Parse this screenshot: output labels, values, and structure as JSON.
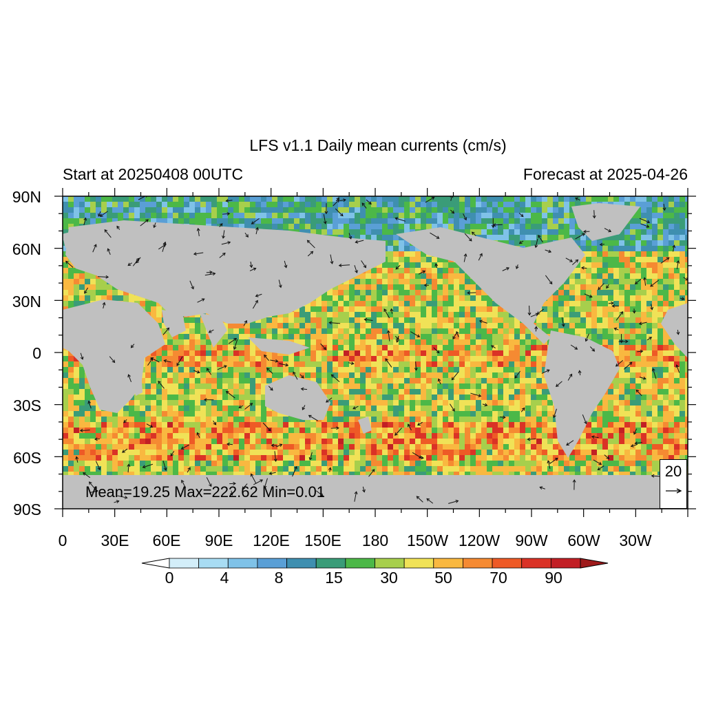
{
  "title": "LFS v1.1 Daily mean currents (cm/s)",
  "left_subtitle": "Start at 20250408 00UTC",
  "right_subtitle": "Forecast at 2025-04-26",
  "lat_labels": [
    "90N",
    "60N",
    "30N",
    "0",
    "30S",
    "60S",
    "90S"
  ],
  "lon_labels": [
    "0",
    "30E",
    "60E",
    "90E",
    "120E",
    "150E",
    "180",
    "150W",
    "120W",
    "90W",
    "60W",
    "30W"
  ],
  "stats": "Mean=19.25  Max=222.62  Min=0.01",
  "reference_vector": {
    "value": "20"
  },
  "colorbar": {
    "labels": [
      "0",
      "4",
      "8",
      "15",
      "30",
      "50",
      "70",
      "90"
    ],
    "colors": [
      "#ffffff",
      "#d3eef9",
      "#a8dcf3",
      "#7fc2e8",
      "#5a9fd6",
      "#3f8fb0",
      "#3a9c78",
      "#4cb848",
      "#a7cf4c",
      "#f0e257",
      "#f9b840",
      "#f58a32",
      "#ee5a26",
      "#da3226",
      "#c21f25",
      "#9e1a1b"
    ],
    "land_color": "#c0c0c0"
  }
}
